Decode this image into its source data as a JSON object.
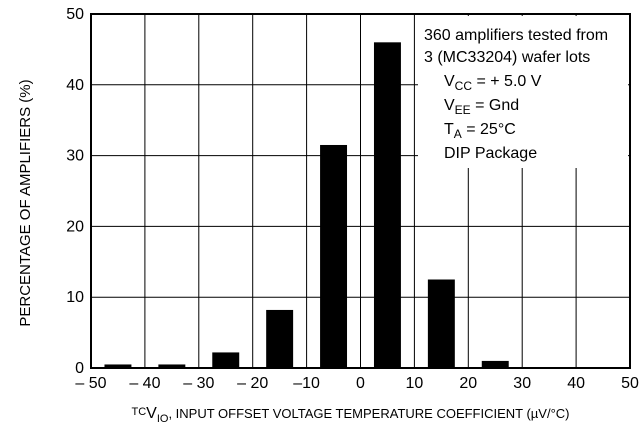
{
  "chart_data": {
    "type": "bar",
    "title": "",
    "xlabel": {
      "prefix": "TC",
      "symbol": "V",
      "subscript": "IO",
      "text": ", INPUT OFFSET VOLTAGE TEMPERATURE COEFFICIENT (µV/°C)"
    },
    "ylabel": "PERCENTAGE OF AMPLIFIERS (%)",
    "xlim": [
      -50,
      50
    ],
    "ylim": [
      0,
      50
    ],
    "grid": true,
    "x_ticks": [
      -50,
      -40,
      -30,
      -20,
      -10,
      0,
      10,
      20,
      30,
      40,
      50
    ],
    "x_tick_labels": [
      "– 50",
      "– 40",
      "– 30",
      "– 20",
      "–10",
      "0",
      "10",
      "20",
      "30",
      "40",
      "50"
    ],
    "y_ticks": [
      0,
      10,
      20,
      30,
      40,
      50
    ],
    "y_tick_labels": [
      "0",
      "10",
      "20",
      "30",
      "40",
      "50"
    ],
    "bins": [
      {
        "start": -50,
        "end": -40,
        "value": 0.5
      },
      {
        "start": -40,
        "end": -30,
        "value": 0.5
      },
      {
        "start": -30,
        "end": -20,
        "value": 2.2
      },
      {
        "start": -20,
        "end": -10,
        "value": 8.2
      },
      {
        "start": -10,
        "end": 0,
        "value": 31.5
      },
      {
        "start": 0,
        "end": 10,
        "value": 46.0
      },
      {
        "start": 10,
        "end": 20,
        "value": 12.5
      },
      {
        "start": 20,
        "end": 30,
        "value": 1.0
      },
      {
        "start": 30,
        "end": 40,
        "value": 0
      },
      {
        "start": 40,
        "end": 50,
        "value": 0
      }
    ],
    "bar_color": "#000000",
    "annotation": {
      "lines": [
        {
          "parts": [
            {
              "t": "360 amplifiers tested from"
            }
          ]
        },
        {
          "parts": [
            {
              "t": "3 (MC33204) wafer lots"
            }
          ]
        },
        {
          "parts": [
            {
              "t": "V"
            },
            {
              "t": "CC",
              "sub": true
            },
            {
              "t": " = + 5.0 V"
            }
          ]
        },
        {
          "parts": [
            {
              "t": "V"
            },
            {
              "t": "EE",
              "sub": true
            },
            {
              "t": " = Gnd"
            }
          ]
        },
        {
          "parts": [
            {
              "t": "T"
            },
            {
              "t": "A",
              "sub": true
            },
            {
              "t": " = 25°C"
            }
          ]
        },
        {
          "parts": [
            {
              "t": "DIP Package"
            }
          ]
        }
      ]
    }
  }
}
